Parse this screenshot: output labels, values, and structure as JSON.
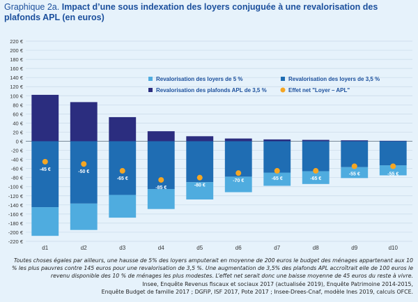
{
  "header": {
    "prefix": "Graphique 2a.",
    "title": "Impact d’une sous indexation des loyers conjuguée à une revalorisation des plafonds APL (en euros)"
  },
  "chart_data": {
    "type": "bar",
    "stacked": true,
    "categories": [
      "d1",
      "d2",
      "d3",
      "d4",
      "d5",
      "d6",
      "d7",
      "d8",
      "d9",
      "d10"
    ],
    "ylim": [
      -220,
      220
    ],
    "yticks": [
      220,
      200,
      180,
      160,
      140,
      120,
      100,
      80,
      60,
      40,
      20,
      0,
      -20,
      -40,
      -60,
      -80,
      -100,
      -120,
      -140,
      -160,
      -180,
      -200,
      -220
    ],
    "ytick_labels": [
      "220 €",
      "200 €",
      "180 €",
      "160 €",
      "140 €",
      "120 €",
      "100 €",
      "80 €",
      "60 €",
      "40 €",
      "20 €",
      "0 €",
      "-20 €",
      "-40 €",
      "-60 €",
      "-80 €",
      "-100 €",
      "-120 €",
      "-140 €",
      "-160 €",
      "-180 €",
      "-200 €",
      "-220 €"
    ],
    "grid": true,
    "legend_position": "top-right",
    "series": [
      {
        "name": "Revalorisation des loyers de 3,5 %",
        "color": "#1f6db3",
        "values": [
          -145,
          -137,
          -118,
          -105,
          -90,
          -78,
          -69,
          -66,
          -57,
          -53
        ]
      },
      {
        "name": "Revalorisation des loyers de 5 %",
        "color": "#4facdf",
        "values": [
          -63,
          -58,
          -50,
          -44,
          -38,
          -34,
          -29,
          -28,
          -24,
          -22
        ]
      },
      {
        "name": "Revalorisation des plafonds APL de 3,5 %",
        "color": "#2b2d7f",
        "values": [
          102,
          86,
          53,
          22,
          11,
          6,
          4,
          3,
          2,
          1
        ]
      }
    ],
    "net_effect": {
      "name": "Effet net \"Loyer – APL\"",
      "color": "#f5a623",
      "values": [
        -45,
        -50,
        -65,
        -85,
        -80,
        -70,
        -65,
        -65,
        -55,
        -55
      ],
      "labels": [
        "-45 €",
        "-50 €",
        "-65 €",
        "-85 €",
        "-80 €",
        "-70 €",
        "-65 €",
        "-65 €",
        "-55 €",
        "-55 €"
      ]
    }
  },
  "notes": {
    "note": "Toutes choses égales par ailleurs, une hausse de 5% des loyers amputerait en moyenne de 200 euros le budget des ménages appartenant aux 10 % les plus pauvres contre 145 euros pour une revalorisation de 3,5 %. Une augmentation de 3,5% des plafonds APL accroîtrait elle de 100 euros le revenu disponible des 10 % de ménages les plus modestes. L’effet net serait donc une baisse moyenne de 45 euros du reste à vivre.",
    "source_line1": "Insee, Enquête Revenus fiscaux et sociaux 2017 (actualisée 2019), Enquête Patrimoine 2014-2015,",
    "source_line2": "Enquête Budget de famille 2017 ; DGFiP, ISF 2017, Pote 2017 ; Insee-Drees-Cnaf, modèle Ines 2019, calculs OFCE."
  }
}
